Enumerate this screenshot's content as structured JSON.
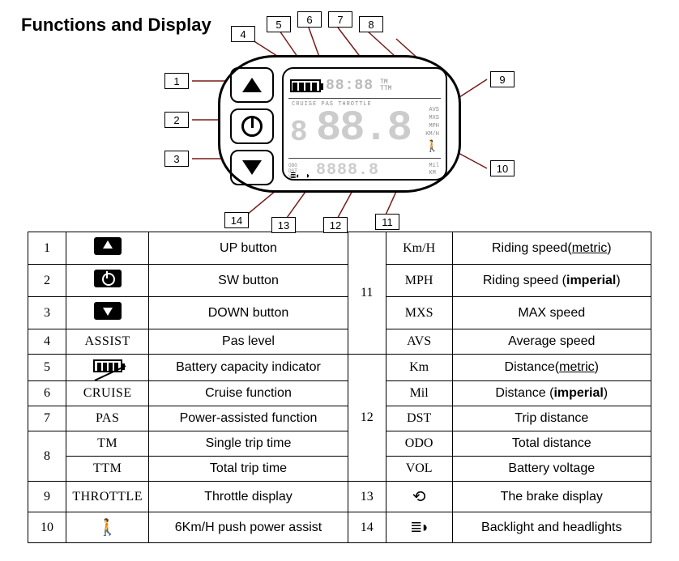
{
  "title": "Functions and Display",
  "screen": {
    "clock": "88:88",
    "tm": "TM",
    "ttm": "TTM",
    "modes": "CRUISE  PAS THROTTLE",
    "big": "88.8",
    "pas_digit": "8",
    "avs": "AVS",
    "mxs": "MXS",
    "mph": "MPH",
    "kmh": "KM/H",
    "odo": "ODO",
    "dst": "DST",
    "vol": "VOL",
    "bottom_val": "8888.8",
    "mil": "Mil",
    "km": "KM",
    "walk": "🚶"
  },
  "callouts": {
    "l1": "1",
    "l2": "2",
    "l3": "3",
    "l4": "4",
    "l5": "5",
    "l6": "6",
    "l7": "7",
    "l8": "8",
    "l9": "9",
    "l10": "10",
    "l11": "11",
    "l12": "12",
    "l13": "13",
    "l14": "14"
  },
  "rows_left": [
    {
      "n": "1",
      "sym_type": "icon-up",
      "desc": "UP button"
    },
    {
      "n": "2",
      "sym_type": "icon-pwr",
      "desc": "SW button"
    },
    {
      "n": "3",
      "sym_type": "icon-down",
      "desc": "DOWN button"
    },
    {
      "n": "4",
      "sym_text": "ASSIST",
      "desc": "Pas level"
    },
    {
      "n": "5",
      "sym_type": "batt",
      "desc": "Battery capacity indicator"
    },
    {
      "n": "6",
      "sym_text": "CRUISE",
      "desc": "Cruise function"
    },
    {
      "n": "7",
      "sym_text": "PAS",
      "desc": "Power-assisted function"
    },
    {
      "n": "",
      "sym_text": "TM",
      "desc": "Single trip time"
    },
    {
      "n": "8",
      "sym_text": "TTM",
      "desc": "Total trip time",
      "rowspan_n": "8"
    },
    {
      "n": "9",
      "sym_text": "THROTTLE",
      "desc": "Throttle display"
    },
    {
      "n": "10",
      "sym_type": "walker",
      "desc": "6Km/H push power assist"
    }
  ],
  "rows_right": [
    {
      "n": "",
      "sym": "Km/H",
      "desc": "Riding speed(",
      "u": "metric",
      "desc2": ")"
    },
    {
      "n": "",
      "sym": "MPH",
      "desc": "Riding speed (",
      "b": "imperial",
      "desc2": ")"
    },
    {
      "n": "11",
      "sym": "MXS",
      "desc": "MAX speed",
      "rowspan": 4
    },
    {
      "n": "",
      "sym": "AVS",
      "desc": "Average speed"
    },
    {
      "n": "",
      "sym": "Km",
      "desc": "Distance(",
      "u": "metric",
      "desc2": ")"
    },
    {
      "n": "",
      "sym": "Mil",
      "desc": "Distance (",
      "b": "imperial",
      "desc2": ")"
    },
    {
      "n": "12",
      "sym": "DST",
      "desc": "Trip distance",
      "rowspan": 5
    },
    {
      "n": "",
      "sym": "ODO",
      "desc": "Total distance"
    },
    {
      "n": "",
      "sym": "VOL",
      "desc": "Battery voltage"
    },
    {
      "n": "13",
      "sym_glyph": "brake",
      "desc": "The brake display"
    },
    {
      "n": "14",
      "sym_glyph": "light",
      "desc": "Backlight and headlights"
    }
  ]
}
